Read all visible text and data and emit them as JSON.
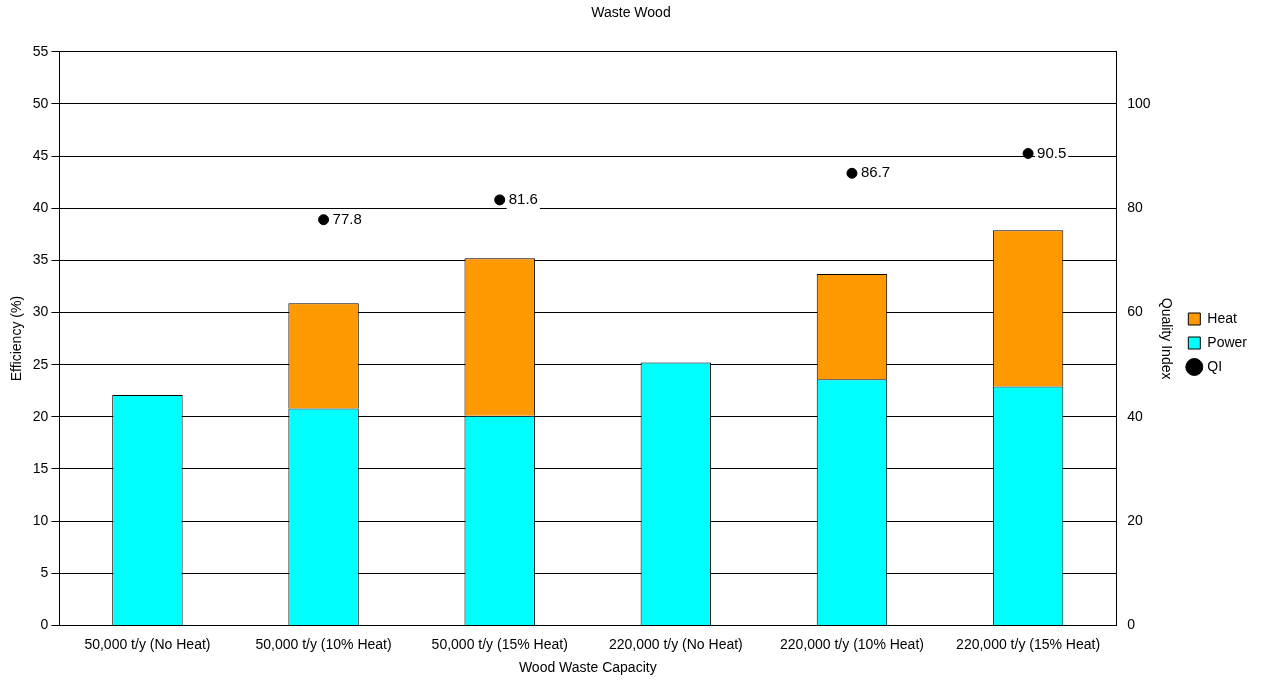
{
  "chart_data": {
    "type": "bar",
    "title": "Waste Wood",
    "xlabel": "Wood Waste Capacity",
    "ylabel": "Efficiency (%)",
    "y2label": "Quality Index",
    "categories": [
      "50,000 t/y (No Heat)",
      "50,000 t/y (10% Heat)",
      "50,000 t/y (15% Heat)",
      "220,000 t/y (No Heat)",
      "220,000 t/y (10% Heat)",
      "220,000 t/y (15% Heat)"
    ],
    "stacked": true,
    "series": [
      {
        "name": "Power",
        "color": "#00ffff",
        "values": [
          22.1,
          20.8,
          20.1,
          25.2,
          23.6,
          22.9
        ]
      },
      {
        "name": "Heat",
        "color": "#ff9900",
        "values": [
          null,
          10.1,
          15.1,
          null,
          10.1,
          15.0
        ]
      },
      {
        "name": "QI",
        "type": "scatter",
        "axis": "y2",
        "color": "#000000",
        "marker": "circle",
        "values": [
          null,
          77.8,
          81.6,
          null,
          86.7,
          90.5
        ],
        "value_labels": [
          null,
          "77.8",
          "81.6",
          null,
          "86.7",
          "90.5"
        ]
      }
    ],
    "ylim": [
      0,
      55
    ],
    "yticks": [
      0,
      5,
      10,
      15,
      20,
      25,
      30,
      35,
      40,
      45,
      50,
      55
    ],
    "y2lim": [
      0,
      110
    ],
    "y2ticks": [
      0,
      20,
      40,
      60,
      80,
      100
    ],
    "grid": "y",
    "legend": "right"
  }
}
